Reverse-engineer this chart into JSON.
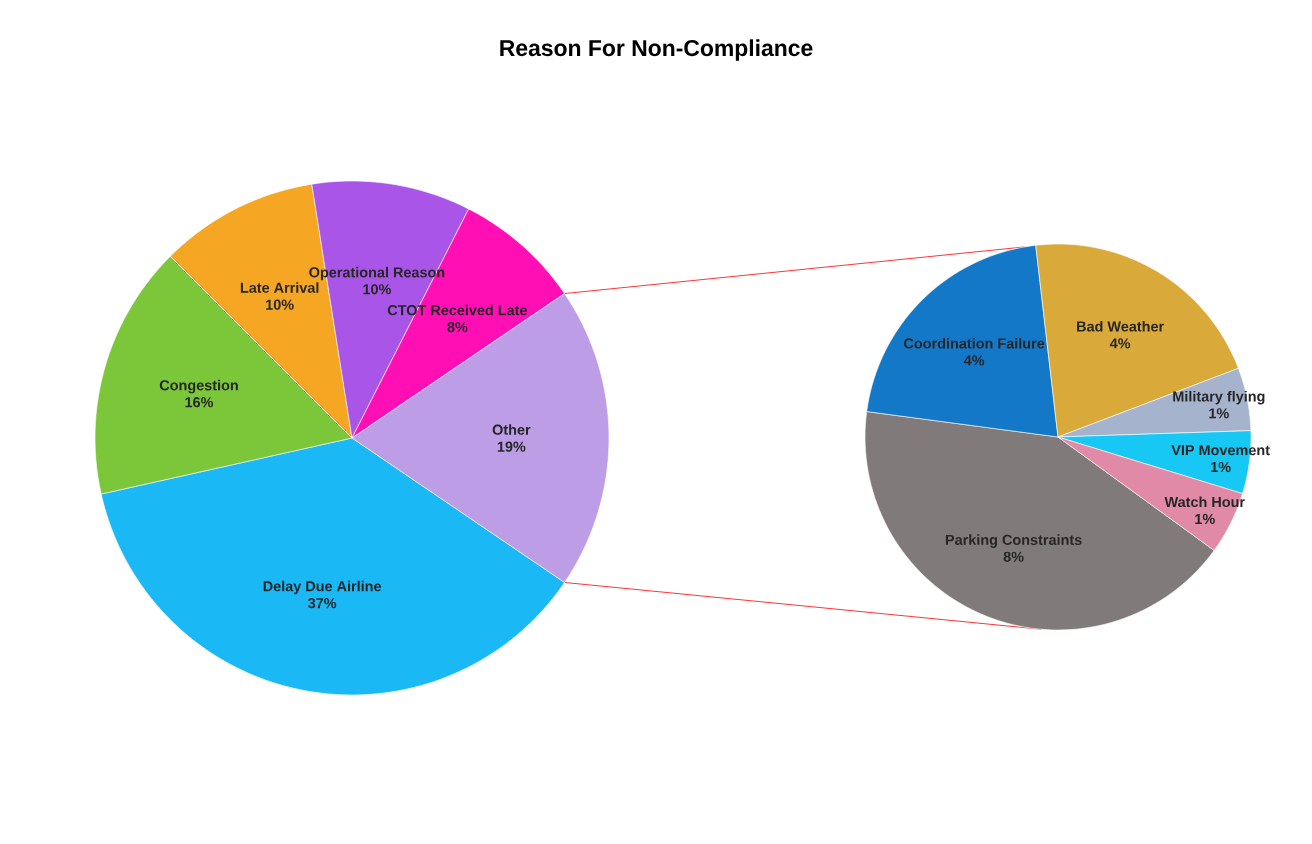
{
  "chart_data": [
    {
      "type": "pie",
      "title": "Reason For Non-Compliance",
      "categories": [
        "Delay Due Airline",
        "Congestion",
        "Late Arrival",
        "Operational Reason",
        "CTOT Received Late",
        "Other"
      ],
      "values": [
        37,
        16,
        10,
        10,
        8,
        19
      ],
      "value_labels": [
        "37%",
        "16%",
        "10%",
        "10%",
        "8%",
        "19%"
      ],
      "colors": [
        "#1ab8f5",
        "#7cc63a",
        "#f5a623",
        "#a855e8",
        "#ff0fb4",
        "#bc9de6"
      ]
    },
    {
      "type": "pie",
      "categories": [
        "Parking Constraints",
        "Coordination Failure",
        "Bad Weather",
        "Military flying",
        "VIP Movement",
        "Watch Hour"
      ],
      "values": [
        8,
        4,
        4,
        1,
        1,
        1
      ],
      "value_labels": [
        "8%",
        "4%",
        "4%",
        "1%",
        "1%",
        "1%"
      ],
      "colors": [
        "#807b7a",
        "#1478c8",
        "#d9a93a",
        "#a5b4cc",
        "#17c8f5",
        "#e08aa8"
      ]
    }
  ]
}
